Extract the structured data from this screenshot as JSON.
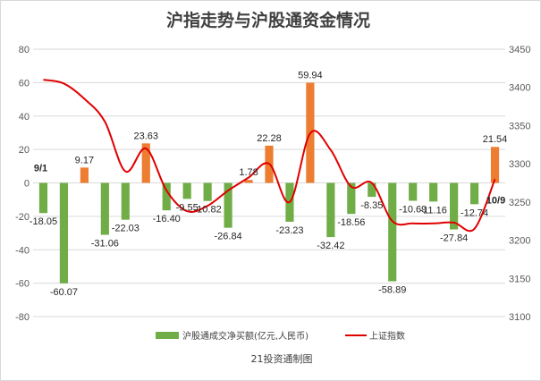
{
  "chart_data": {
    "type": "bar",
    "title": "沪指走势与沪股通资金情况",
    "source_note": "21投资通制图",
    "date_labels": [
      "9/1",
      "10/9"
    ],
    "legend_position": "bottom",
    "grid": true,
    "y_left": {
      "ylim": [
        -80,
        80
      ],
      "ticks": [
        -80,
        -60,
        -40,
        -20,
        0,
        20,
        40,
        60,
        80
      ]
    },
    "y_right": {
      "ylim": [
        3100,
        3450
      ],
      "ticks": [
        3100,
        3150,
        3200,
        3250,
        3300,
        3350,
        3400,
        3450
      ]
    },
    "series": [
      {
        "name": "沪股通成交净买额(亿元,人民币)",
        "kind": "bar",
        "axis": "left",
        "positive_color": "#ED7D31",
        "negative_color": "#70AD47",
        "values": [
          -18.05,
          -60.07,
          9.17,
          -31.06,
          -22.03,
          23.63,
          -16.4,
          -9.55,
          -10.82,
          -26.84,
          1.78,
          22.28,
          -23.23,
          59.94,
          -32.42,
          -18.56,
          -8.35,
          -58.89,
          -10.69,
          -11.16,
          -27.84,
          -12.74,
          21.54
        ],
        "labels": [
          "-18.05",
          "-60.07",
          "9.17",
          "-31.06",
          "-22.03",
          "23.63",
          "-16.40",
          "-9.55",
          "-10.82",
          "-26.84",
          "1.78",
          "22.28",
          "-23.23",
          "59.94",
          "-32.42",
          "-18.56",
          "-8.35",
          "-58.89",
          "-10.69",
          "-11.16",
          "-27.84",
          "-12.74",
          "21.54"
        ]
      },
      {
        "name": "上证指数",
        "kind": "line",
        "axis": "right",
        "color": "#E00000",
        "values": [
          3410,
          3405,
          3385,
          3355,
          3290,
          3320,
          3265,
          3238,
          3245,
          3265,
          3282,
          3300,
          3250,
          3340,
          3318,
          3270,
          3275,
          3225,
          3222,
          3222,
          3223,
          3215,
          3280
        ]
      }
    ]
  }
}
